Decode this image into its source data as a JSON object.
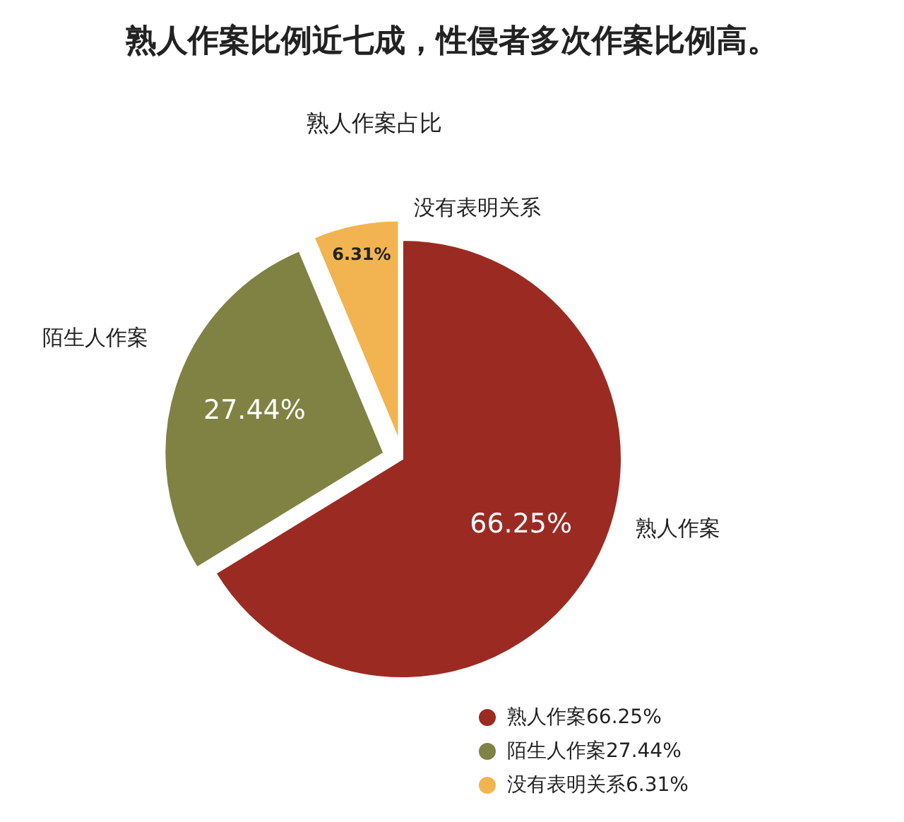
{
  "chart_data": {
    "type": "pie",
    "title": "熟人作案比例近七成，性侵者多次作案比例高。",
    "subtitle": "熟人作案占比",
    "categories": [
      "熟人作案",
      "陌生人作案",
      "没有表明关系"
    ],
    "values": [
      66.25,
      27.44,
      6.31
    ],
    "value_labels": [
      "66.25%",
      "27.44%",
      "6.31%"
    ],
    "colors": [
      "#9b2b22",
      "#7f8243",
      "#f2b451"
    ],
    "legend": "bottom right"
  }
}
